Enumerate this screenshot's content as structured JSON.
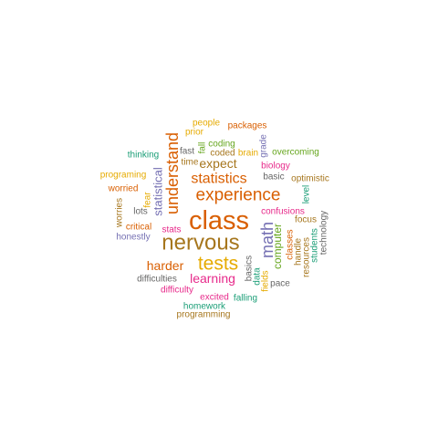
{
  "palette": {
    "teal": "#1b9e77",
    "orange": "#d95f02",
    "purple": "#7570b3",
    "pink": "#e7298a",
    "green": "#66a61e",
    "gold": "#e6ab02",
    "brown": "#a6761d",
    "gray": "#666666"
  },
  "words": [
    {
      "text": "class",
      "color": "orange"
    },
    {
      "text": "nervous",
      "color": "brown"
    },
    {
      "text": "experience",
      "color": "orange"
    },
    {
      "text": "tests",
      "color": "gold"
    },
    {
      "text": "understand",
      "color": "orange"
    },
    {
      "text": "statistics",
      "color": "orange"
    },
    {
      "text": "math",
      "color": "purple"
    },
    {
      "text": "learning",
      "color": "pink"
    },
    {
      "text": "harder",
      "color": "orange"
    },
    {
      "text": "expect",
      "color": "brown"
    },
    {
      "text": "statistical",
      "color": "purple"
    },
    {
      "text": "computer",
      "color": "green"
    },
    {
      "text": "people",
      "color": "gold"
    },
    {
      "text": "packages",
      "color": "orange"
    },
    {
      "text": "prior",
      "color": "gold"
    },
    {
      "text": "coding",
      "color": "green"
    },
    {
      "text": "fall",
      "color": "green"
    },
    {
      "text": "grade",
      "color": "purple"
    },
    {
      "text": "thinking",
      "color": "teal"
    },
    {
      "text": "fast",
      "color": "gray"
    },
    {
      "text": "coded",
      "color": "brown"
    },
    {
      "text": "brain",
      "color": "gold"
    },
    {
      "text": "overcoming",
      "color": "green"
    },
    {
      "text": "time",
      "color": "brown"
    },
    {
      "text": "biology",
      "color": "pink"
    },
    {
      "text": "programing",
      "color": "gold"
    },
    {
      "text": "basic",
      "color": "gray"
    },
    {
      "text": "optimistic",
      "color": "brown"
    },
    {
      "text": "worried",
      "color": "orange"
    },
    {
      "text": "fear",
      "color": "gold"
    },
    {
      "text": "level",
      "color": "teal"
    },
    {
      "text": "worries",
      "color": "brown"
    },
    {
      "text": "lots",
      "color": "gray"
    },
    {
      "text": "confusions",
      "color": "pink"
    },
    {
      "text": "critical",
      "color": "orange"
    },
    {
      "text": "focus",
      "color": "brown"
    },
    {
      "text": "stats",
      "color": "pink"
    },
    {
      "text": "honestly",
      "color": "purple"
    },
    {
      "text": "classes",
      "color": "orange"
    },
    {
      "text": "handle",
      "color": "brown"
    },
    {
      "text": "technology",
      "color": "gray"
    },
    {
      "text": "students",
      "color": "teal"
    },
    {
      "text": "resources",
      "color": "brown"
    },
    {
      "text": "basics",
      "color": "gray"
    },
    {
      "text": "data",
      "color": "teal"
    },
    {
      "text": "fields",
      "color": "gold"
    },
    {
      "text": "difficulties",
      "color": "gray"
    },
    {
      "text": "pace",
      "color": "gray"
    },
    {
      "text": "difficulty",
      "color": "pink"
    },
    {
      "text": "excited",
      "color": "pink"
    },
    {
      "text": "falling",
      "color": "teal"
    },
    {
      "text": "homework",
      "color": "teal"
    },
    {
      "text": "programming",
      "color": "brown"
    }
  ]
}
